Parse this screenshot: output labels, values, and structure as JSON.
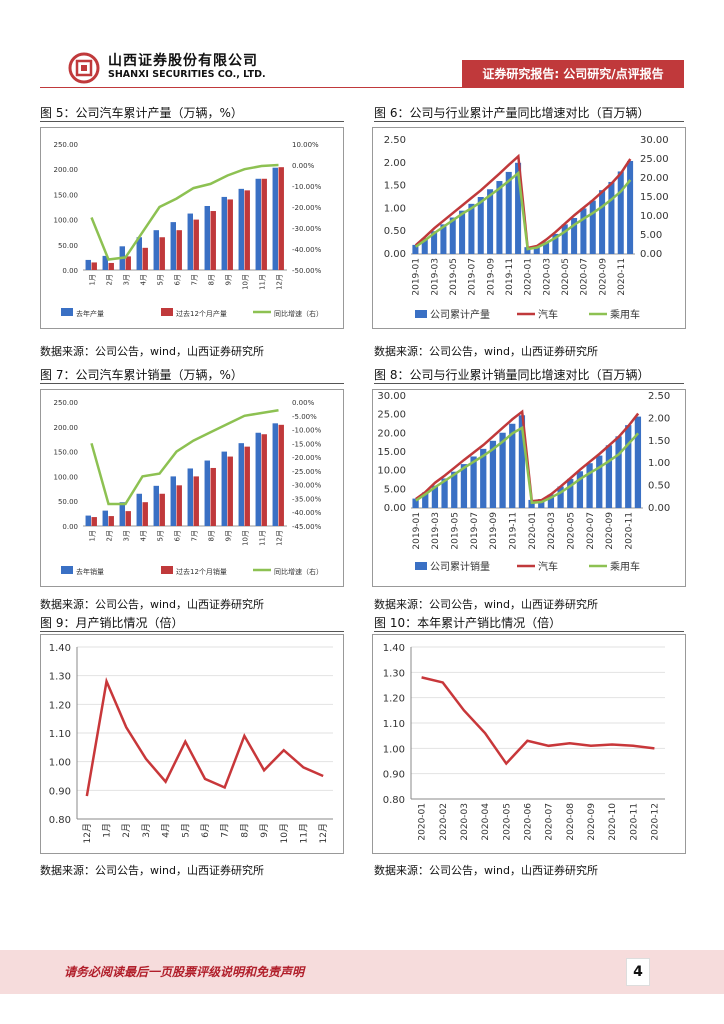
{
  "header": {
    "company_cn": "山西证券股份有限公司",
    "company_en": "SHANXI SECURITIES CO., LTD.",
    "banner": "证券研究报告: 公司研究/点评报告"
  },
  "colors": {
    "brand_red": "#c0393b",
    "blue": "#3a70c4",
    "red": "#c0393b",
    "green": "#8dc152",
    "line_red": "#c8373a"
  },
  "figures": {
    "fig5": {
      "title": "图 5：公司汽车累计产量（万辆，%）",
      "source": "数据来源：公司公告，wind，山西证券研究所"
    },
    "fig6": {
      "title": "图 6：公司与行业累计产量同比增速对比（百万辆）",
      "source": "数据来源：公司公告，wind，山西证券研究所"
    },
    "fig7": {
      "title": "图 7：公司汽车累计销量（万辆，%）",
      "source": "数据来源：公司公告，wind，山西证券研究所"
    },
    "fig8": {
      "title": "图 8：公司与行业累计销量同比增速对比（百万辆）",
      "source": "数据来源：公司公告，wind，山西证券研究所"
    },
    "fig9": {
      "title": "图 9：月产销比情况（倍）",
      "source": "数据来源：公司公告，wind，山西证券研究所"
    },
    "fig10": {
      "title": "图 10：本年累计产销比情况（倍）",
      "source": "数据来源：公司公告，wind，山西证券研究所"
    }
  },
  "footer": {
    "disclaimer": "请务必阅读最后一页股票评级说明和免责声明",
    "page": "4"
  },
  "chart_data": [
    {
      "id": "fig5",
      "type": "bar",
      "title": "公司汽车累计产量（万辆，%）",
      "categories": [
        "1月",
        "2月",
        "3月",
        "4月",
        "5月",
        "6月",
        "7月",
        "8月",
        "9月",
        "10月",
        "11月",
        "12月"
      ],
      "series": [
        {
          "name": "去年产量",
          "axis": "left",
          "values": [
            20,
            28,
            47,
            65,
            79,
            95,
            112,
            127,
            145,
            161,
            181,
            203
          ]
        },
        {
          "name": "过去12个月产量",
          "axis": "left",
          "values": [
            15,
            14,
            27,
            44,
            65,
            79,
            100,
            117,
            140,
            158,
            181,
            204
          ]
        },
        {
          "name": "同比增速（右）",
          "axis": "right",
          "type": "line",
          "values": [
            -25,
            -45,
            -44,
            -32,
            -20,
            -16,
            -11,
            -9,
            -5,
            -2,
            -0.5,
            0
          ]
        }
      ],
      "ylim": [
        0,
        250
      ],
      "yticks": [
        "0.00",
        "50.00",
        "100.00",
        "150.00",
        "200.00",
        "250.00"
      ],
      "y2lim": [
        -50,
        10
      ],
      "y2ticks": [
        "-50.00%",
        "-40.00%",
        "-30.00%",
        "-20.00%",
        "-10.00%",
        "0.00%",
        "10.00%"
      ]
    },
    {
      "id": "fig6",
      "type": "bar",
      "title": "公司与行业累计产量同比增速对比（百万辆）",
      "categories": [
        "2019-01",
        "2019-02",
        "2019-03",
        "2019-04",
        "2019-05",
        "2019-06",
        "2019-07",
        "2019-08",
        "2019-09",
        "2019-10",
        "2019-11",
        "2019-12",
        "2020-01",
        "2020-02",
        "2020-03",
        "2020-04",
        "2020-05",
        "2020-06",
        "2020-07",
        "2020-08",
        "2020-09",
        "2020-10",
        "2020-11",
        "2020-12"
      ],
      "xticks": [
        "2019-01",
        "2019-03",
        "2019-05",
        "2019-07",
        "2019-09",
        "2019-11",
        "2020-01",
        "2020-03",
        "2020-05",
        "2020-07",
        "2020-09",
        "2020-11"
      ],
      "series": [
        {
          "name": "公司累计产量",
          "axis": "left",
          "values": [
            0.2,
            0.35,
            0.5,
            0.65,
            0.8,
            0.95,
            1.1,
            1.25,
            1.42,
            1.6,
            1.8,
            2.0,
            0.15,
            0.16,
            0.27,
            0.44,
            0.65,
            0.79,
            1.0,
            1.17,
            1.4,
            1.58,
            1.81,
            2.04
          ]
        },
        {
          "name": "汽车",
          "axis": "right",
          "type": "line",
          "values": [
            2.3,
            4.5,
            6.8,
            8.8,
            10.8,
            12.8,
            14.8,
            16.8,
            19.0,
            21.2,
            23.5,
            25.7,
            1.6,
            2.1,
            3.8,
            5.8,
            8.0,
            10.2,
            12.2,
            14.2,
            16.4,
            18.6,
            21.3,
            25.0
          ]
        },
        {
          "name": "乘用车",
          "axis": "right",
          "type": "line",
          "values": [
            1.9,
            3.6,
            5.5,
            7.2,
            8.9,
            10.6,
            12.1,
            13.7,
            15.5,
            17.3,
            19.3,
            21.3,
            1.3,
            1.7,
            2.9,
            4.3,
            5.9,
            7.7,
            9.3,
            10.8,
            12.5,
            14.4,
            16.5,
            19.5
          ]
        }
      ],
      "ylim": [
        0,
        2.5
      ],
      "yticks": [
        "0.00",
        "0.50",
        "1.00",
        "1.50",
        "2.00",
        "2.50"
      ],
      "y2lim": [
        0,
        30
      ],
      "y2ticks": [
        "0.00",
        "5.00",
        "10.00",
        "15.00",
        "20.00",
        "25.00",
        "30.00"
      ]
    },
    {
      "id": "fig7",
      "type": "bar",
      "title": "公司汽车累计销量（万辆，%）",
      "categories": [
        "1月",
        "2月",
        "3月",
        "4月",
        "5月",
        "6月",
        "7月",
        "8月",
        "9月",
        "10月",
        "11月",
        "12月"
      ],
      "series": [
        {
          "name": "去年销量",
          "axis": "left",
          "values": [
            21,
            31,
            48,
            65,
            81,
            100,
            116,
            132,
            150,
            167,
            188,
            207
          ]
        },
        {
          "name": "过去12个月销量",
          "axis": "left",
          "values": [
            18,
            20,
            30,
            48,
            65,
            82,
            100,
            117,
            140,
            160,
            185,
            204
          ]
        },
        {
          "name": "同比增速（右）",
          "axis": "right",
          "type": "line",
          "values": [
            -15,
            -37,
            -37,
            -27,
            -26,
            -18,
            -14,
            -11,
            -8,
            -5,
            -4,
            -3
          ]
        }
      ],
      "ylim": [
        0,
        250
      ],
      "yticks": [
        "0.00",
        "50.00",
        "100.00",
        "150.00",
        "200.00",
        "250.00"
      ],
      "y2lim": [
        -45,
        0
      ],
      "y2ticks": [
        "-45.00%",
        "-40.00%",
        "-35.00%",
        "-30.00%",
        "-25.00%",
        "-20.00%",
        "-15.00%",
        "-10.00%",
        "-5.00%",
        "0.00%"
      ]
    },
    {
      "id": "fig8",
      "type": "bar",
      "title": "公司与行业累计销量同比增速对比（百万辆）",
      "categories": [
        "2019-01",
        "2019-02",
        "2019-03",
        "2019-04",
        "2019-05",
        "2019-06",
        "2019-07",
        "2019-08",
        "2019-09",
        "2019-10",
        "2019-11",
        "2019-12",
        "2020-01",
        "2020-02",
        "2020-03",
        "2020-04",
        "2020-05",
        "2020-06",
        "2020-07",
        "2020-08",
        "2020-09",
        "2020-10",
        "2020-11",
        "2020-12"
      ],
      "xticks": [
        "2019-01",
        "2019-03",
        "2019-05",
        "2019-07",
        "2019-09",
        "2019-11",
        "2020-01",
        "2020-03",
        "2020-05",
        "2020-07",
        "2020-09",
        "2020-11"
      ],
      "series": [
        {
          "name": "公司累计销量",
          "axis": "right",
          "values": [
            0.21,
            0.35,
            0.5,
            0.66,
            0.81,
            0.98,
            1.15,
            1.32,
            1.5,
            1.68,
            1.88,
            2.07,
            0.18,
            0.2,
            0.3,
            0.48,
            0.65,
            0.82,
            1.0,
            1.17,
            1.4,
            1.6,
            1.85,
            2.04
          ]
        },
        {
          "name": "汽车",
          "axis": "left",
          "type": "line",
          "values": [
            2.4,
            4.3,
            6.8,
            8.7,
            10.8,
            12.9,
            14.9,
            16.9,
            19.2,
            21.5,
            23.8,
            25.8,
            1.8,
            2.1,
            3.7,
            5.8,
            8.0,
            10.3,
            12.4,
            14.5,
            16.8,
            19.1,
            22.0,
            25.3
          ]
        },
        {
          "name": "乘用车",
          "axis": "left",
          "type": "line",
          "values": [
            2.0,
            3.7,
            5.6,
            7.3,
            9.0,
            10.8,
            12.4,
            14.0,
            15.8,
            17.8,
            20.0,
            21.5,
            1.4,
            1.6,
            2.8,
            4.2,
            5.9,
            7.8,
            9.4,
            10.9,
            12.6,
            14.4,
            17.2,
            20.0
          ]
        }
      ],
      "ylim": [
        0,
        30
      ],
      "yticks": [
        "0.00",
        "5.00",
        "10.00",
        "15.00",
        "20.00",
        "25.00",
        "30.00"
      ],
      "y2lim": [
        0,
        2.5
      ],
      "y2ticks": [
        "0.00",
        "0.50",
        "1.00",
        "1.50",
        "2.00",
        "2.50"
      ]
    },
    {
      "id": "fig9",
      "type": "line",
      "title": "月产销比情况（倍）",
      "categories": [
        "12月",
        "1月",
        "2月",
        "3月",
        "4月",
        "5月",
        "6月",
        "7月",
        "8月",
        "9月",
        "10月",
        "11月",
        "12月"
      ],
      "series": [
        {
          "name": "月产销比",
          "values": [
            0.88,
            1.28,
            1.12,
            1.01,
            0.93,
            1.07,
            0.94,
            0.91,
            1.09,
            0.97,
            1.04,
            0.98,
            0.95
          ]
        }
      ],
      "ylim": [
        0.8,
        1.4
      ],
      "yticks": [
        "0.80",
        "0.90",
        "1.00",
        "1.10",
        "1.20",
        "1.30",
        "1.40"
      ]
    },
    {
      "id": "fig10",
      "type": "line",
      "title": "本年累计产销比情况（倍）",
      "categories": [
        "2020-01",
        "2020-02",
        "2020-03",
        "2020-04",
        "2020-05",
        "2020-06",
        "2020-07",
        "2020-08",
        "2020-09",
        "2020-10",
        "2020-11",
        "2020-12"
      ],
      "series": [
        {
          "name": "本年累计产销比",
          "values": [
            1.28,
            1.26,
            1.15,
            1.06,
            0.94,
            1.03,
            1.01,
            1.02,
            1.01,
            1.015,
            1.01,
            1.0
          ]
        }
      ],
      "ylim": [
        0.8,
        1.4
      ],
      "yticks": [
        "0.80",
        "0.90",
        "1.00",
        "1.10",
        "1.20",
        "1.30",
        "1.40"
      ]
    }
  ]
}
